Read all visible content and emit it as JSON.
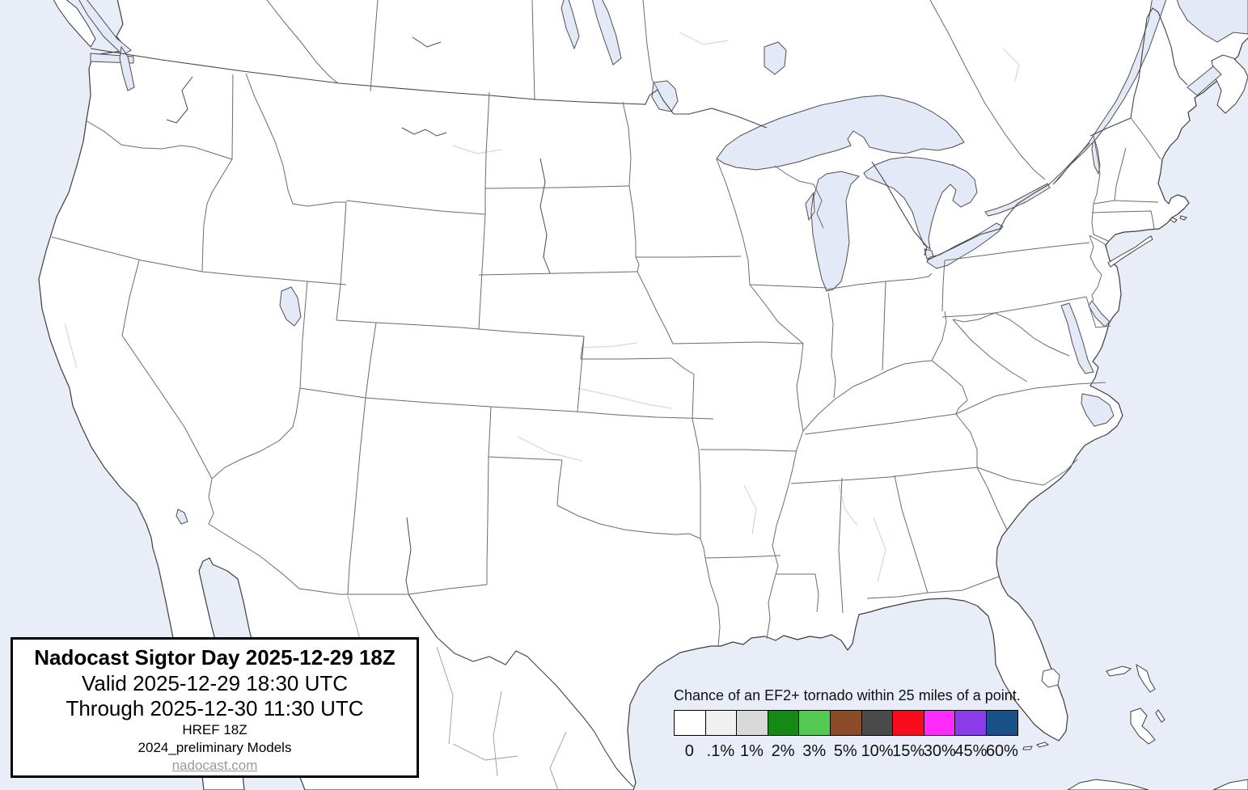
{
  "title_box": {
    "title": "Nadocast Sigtor Day 2025-12-29 18Z",
    "valid_line": "Valid 2025-12-29 18:30 UTC",
    "through_line": "Through 2025-12-30 11:30 UTC",
    "model_line": "HREF 18Z",
    "models_note": "2024_preliminary Models",
    "website": "nadocast.com"
  },
  "legend": {
    "caption": "Chance of an EF2+ tornado within 25 miles of a point.",
    "bins": [
      {
        "label": "0",
        "color": "#ffffff"
      },
      {
        "label": ".1%",
        "color": "#f0f0f0"
      },
      {
        "label": "1%",
        "color": "#d9d9d9"
      },
      {
        "label": "2%",
        "color": "#148a14"
      },
      {
        "label": "3%",
        "color": "#53cb53"
      },
      {
        "label": "5%",
        "color": "#8b4a28"
      },
      {
        "label": "10%",
        "color": "#4a4a4a"
      },
      {
        "label": "15%",
        "color": "#f90d1c"
      },
      {
        "label": "30%",
        "color": "#fe2bfc"
      },
      {
        "label": "45%",
        "color": "#8c3be8"
      },
      {
        "label": "60%",
        "color": "#1a5088"
      }
    ]
  },
  "map": {
    "water_color": "#e9edf8",
    "lake_color": "#e3e9f6",
    "land_color": "#ffffff",
    "coast_color": "#3d3d3d",
    "state_line_color": "#6b6b6b",
    "national_line_color": "#444444",
    "foreign_line_color": "#9a9a9a",
    "river_color": "#ccd9ee"
  }
}
